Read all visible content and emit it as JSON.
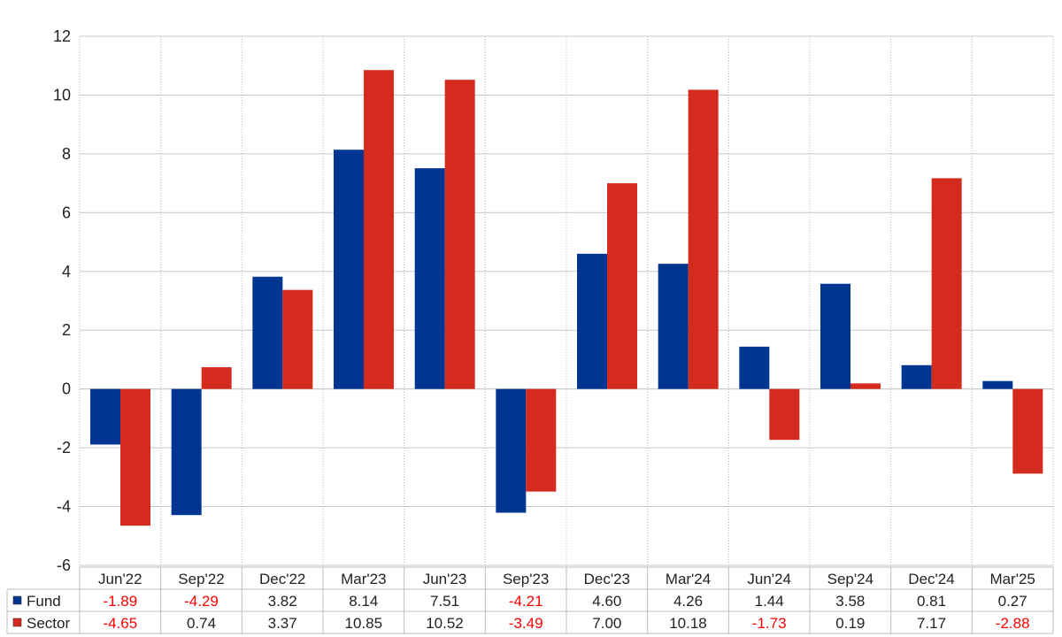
{
  "chart_data": {
    "type": "bar",
    "categories": [
      "Jun'22",
      "Sep'22",
      "Dec'22",
      "Mar'23",
      "Jun'23",
      "Sep'23",
      "Dec'23",
      "Mar'24",
      "Jun'24",
      "Sep'24",
      "Dec'24",
      "Mar'25"
    ],
    "series": [
      {
        "name": "Fund",
        "color": "#003591",
        "values": [
          -1.89,
          -4.29,
          3.82,
          8.14,
          7.51,
          -4.21,
          4.6,
          4.26,
          1.44,
          3.58,
          0.81,
          0.27
        ],
        "labels": [
          "-1.89",
          "-4.29",
          "3.82",
          "8.14",
          "7.51",
          "-4.21",
          "4.60",
          "4.26",
          "1.44",
          "3.58",
          "0.81",
          "0.27"
        ]
      },
      {
        "name": "Sector",
        "color": "#d52b1e",
        "values": [
          -4.65,
          0.74,
          3.37,
          10.85,
          10.52,
          -3.49,
          7.0,
          10.18,
          -1.73,
          0.19,
          7.17,
          -2.88
        ],
        "labels": [
          "-4.65",
          "0.74",
          "3.37",
          "10.85",
          "10.52",
          "-3.49",
          "7.00",
          "10.18",
          "-1.73",
          "0.19",
          "7.17",
          "-2.88"
        ]
      }
    ],
    "ylim": [
      -6,
      12
    ],
    "yticks": [
      12,
      10,
      8,
      6,
      4,
      2,
      0,
      -2,
      -4,
      -6
    ],
    "title": "",
    "xlabel": "",
    "ylabel": "",
    "grid": true,
    "legend": "data-table-left",
    "negative_label_color": "#ff0000",
    "positive_label_color": "#222222"
  }
}
